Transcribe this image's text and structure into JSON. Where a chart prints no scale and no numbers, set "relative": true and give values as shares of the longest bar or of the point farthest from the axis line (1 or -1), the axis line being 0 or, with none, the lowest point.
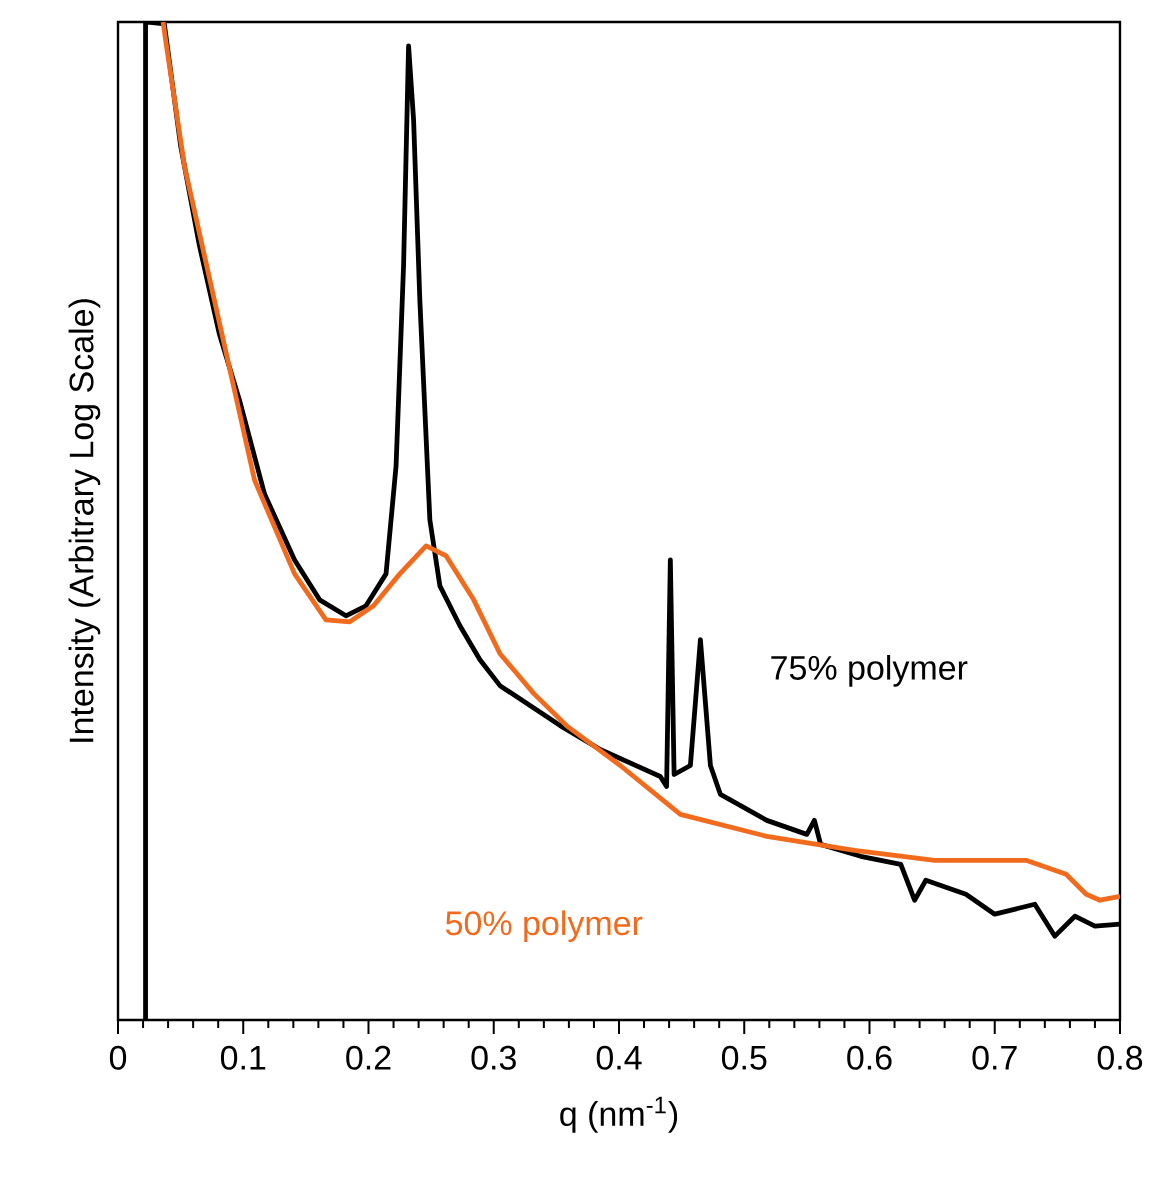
{
  "chart_data": {
    "type": "line",
    "relative": true,
    "xlabel": "q (nm$^{-1}$)",
    "ylabel": "Intensity (Arbitrary Log Scale)",
    "xlim": [
      0,
      0.8
    ],
    "xticks": [
      0,
      0.1,
      0.2,
      0.3,
      0.4,
      0.5,
      0.6,
      0.7,
      0.8
    ],
    "series": [
      {
        "name": "75% polymer",
        "color": "#000000",
        "x": [
          0.022,
          0.022,
          0.037,
          0.05,
          0.065,
          0.081,
          0.097,
          0.117,
          0.141,
          0.161,
          0.182,
          0.198,
          0.214,
          0.222,
          0.228,
          0.232,
          0.236,
          0.241,
          0.249,
          0.257,
          0.273,
          0.289,
          0.305,
          0.353,
          0.385,
          0.433,
          0.438,
          0.441,
          0.444,
          0.457,
          0.465,
          0.473,
          0.481,
          0.518,
          0.55,
          0.556,
          0.561,
          0.593,
          0.625,
          0.636,
          0.645,
          0.677,
          0.7,
          0.732,
          0.748,
          0.764,
          0.78,
          0.8
        ],
        "values": [
          0,
          1,
          0.998,
          0.876,
          0.776,
          0.687,
          0.621,
          0.527,
          0.461,
          0.421,
          0.405,
          0.415,
          0.447,
          0.555,
          0.756,
          0.976,
          0.902,
          0.721,
          0.501,
          0.435,
          0.395,
          0.361,
          0.335,
          0.295,
          0.271,
          0.244,
          0.234,
          0.461,
          0.246,
          0.255,
          0.381,
          0.255,
          0.226,
          0.2,
          0.186,
          0.2,
          0.176,
          0.164,
          0.156,
          0.12,
          0.14,
          0.126,
          0.106,
          0.116,
          0.084,
          0.104,
          0.094,
          0.096
        ]
      },
      {
        "name": "50% polymer",
        "color": "#f26b1d",
        "x": [
          0.036,
          0.038,
          0.053,
          0.077,
          0.109,
          0.141,
          0.166,
          0.185,
          0.204,
          0.225,
          0.246,
          0.262,
          0.284,
          0.305,
          0.332,
          0.358,
          0.401,
          0.449,
          0.518,
          0.588,
          0.652,
          0.725,
          0.757,
          0.773,
          0.784,
          0.8
        ],
        "values": [
          1,
          0.982,
          0.856,
          0.721,
          0.541,
          0.447,
          0.401,
          0.399,
          0.415,
          0.447,
          0.475,
          0.465,
          0.421,
          0.367,
          0.327,
          0.295,
          0.255,
          0.206,
          0.184,
          0.17,
          0.16,
          0.16,
          0.146,
          0.126,
          0.12,
          0.124
        ]
      }
    ]
  }
}
